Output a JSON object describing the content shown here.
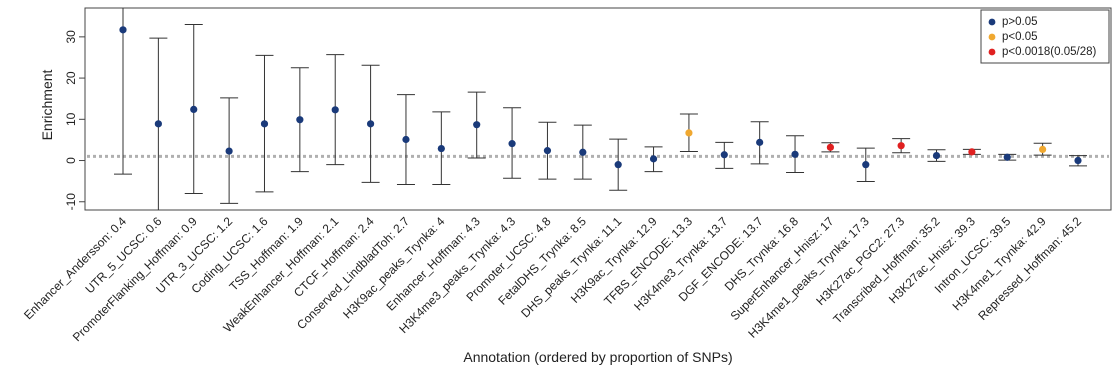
{
  "chart_data": {
    "type": "scatter",
    "xlabel": "Annotation (ordered by proportion of SNPs)",
    "ylabel": "Enrichment",
    "ylim": [
      -12,
      37
    ],
    "yticks": [
      -10,
      0,
      10,
      20,
      30
    ],
    "reference_line": 1,
    "legend": {
      "placement": "top-right",
      "entries": [
        {
          "label": "p>0.05",
          "color": "#1a3a7a"
        },
        {
          "label": "p<0.05",
          "color": "#f0a830"
        },
        {
          "label": "p<0.0018(0.05/28)",
          "color": "#e02020"
        }
      ]
    },
    "points": [
      {
        "label": "Enhancer_Andersson: 0.4",
        "value": 31.7,
        "lower": -3.3,
        "upper": 37,
        "group": 0
      },
      {
        "label": "UTR_5_UCSC: 0.6",
        "value": 8.9,
        "lower": -12,
        "upper": 29.7,
        "group": 0
      },
      {
        "label": "PromoterFlanking_Hoffman: 0.9",
        "value": 12.4,
        "lower": -8.0,
        "upper": 33.0,
        "group": 0
      },
      {
        "label": "UTR_3_UCSC: 1.2",
        "value": 2.3,
        "lower": -10.4,
        "upper": 15.2,
        "group": 0
      },
      {
        "label": "Coding_UCSC: 1.6",
        "value": 8.9,
        "lower": -7.6,
        "upper": 25.5,
        "group": 0
      },
      {
        "label": "TSS_Hoffman: 1.9",
        "value": 9.9,
        "lower": -2.7,
        "upper": 22.5,
        "group": 0
      },
      {
        "label": "WeakEnhancer_Hoffman: 2.1",
        "value": 12.3,
        "lower": -1.0,
        "upper": 25.7,
        "group": 0
      },
      {
        "label": "CTCF_Hoffman: 2.4",
        "value": 8.9,
        "lower": -5.3,
        "upper": 23.1,
        "group": 0
      },
      {
        "label": "Conserved_LindbladToh: 2.7",
        "value": 5.1,
        "lower": -5.8,
        "upper": 16.0,
        "group": 0
      },
      {
        "label": "H3K9ac_peaks_Trynka: 4",
        "value": 2.9,
        "lower": -5.8,
        "upper": 11.8,
        "group": 0
      },
      {
        "label": "Enhancer_Hoffman: 4.3",
        "value": 8.7,
        "lower": 0.6,
        "upper": 16.6,
        "group": 0
      },
      {
        "label": "H3K4me3_peaks_Trynka: 4.3",
        "value": 4.1,
        "lower": -4.3,
        "upper": 12.8,
        "group": 0
      },
      {
        "label": "Promoter_UCSC: 4.8",
        "value": 2.4,
        "lower": -4.5,
        "upper": 9.3,
        "group": 0
      },
      {
        "label": "FetalDHS_Trynka: 8.5",
        "value": 2.0,
        "lower": -4.5,
        "upper": 8.6,
        "group": 0
      },
      {
        "label": "DHS_peaks_Trynka: 11.1",
        "value": -1.0,
        "lower": -7.2,
        "upper": 5.2,
        "group": 0
      },
      {
        "label": "H3K9ac_Trynka: 12.9",
        "value": 0.4,
        "lower": -2.7,
        "upper": 3.3,
        "group": 0
      },
      {
        "label": "TFBS_ENCODE: 13.3",
        "value": 6.7,
        "lower": 2.2,
        "upper": 11.3,
        "group": 1
      },
      {
        "label": "H3K4me3_Trynka: 13.7",
        "value": 1.4,
        "lower": -1.9,
        "upper": 4.4,
        "group": 0
      },
      {
        "label": "DGF_ENCODE: 13.7",
        "value": 4.4,
        "lower": -0.8,
        "upper": 9.4,
        "group": 0
      },
      {
        "label": "DHS_Trynka: 16.8",
        "value": 1.5,
        "lower": -2.9,
        "upper": 6.0,
        "group": 0
      },
      {
        "label": "SuperEnhancer_Hnisz: 17",
        "value": 3.2,
        "lower": 2.1,
        "upper": 4.3,
        "group": 2
      },
      {
        "label": "H3K4me1_peaks_Trynka: 17.3",
        "value": -1.0,
        "lower": -5.1,
        "upper": 3.0,
        "group": 0
      },
      {
        "label": "H3K27ac_PGC2: 27.3",
        "value": 3.6,
        "lower": 1.9,
        "upper": 5.3,
        "group": 2
      },
      {
        "label": "Transcribed_Hoffman: 35.2",
        "value": 1.2,
        "lower": -0.2,
        "upper": 2.6,
        "group": 0
      },
      {
        "label": "H3K27ac_Hnisz: 39.3",
        "value": 2.1,
        "lower": 1.5,
        "upper": 2.7,
        "group": 2
      },
      {
        "label": "Intron_UCSC: 39.5",
        "value": 0.8,
        "lower": 0.1,
        "upper": 1.5,
        "group": 0
      },
      {
        "label": "H3K4me1_Trynka: 42.9",
        "value": 2.7,
        "lower": 1.3,
        "upper": 4.2,
        "group": 1
      },
      {
        "label": "Repressed_Hoffman: 45.2",
        "value": 0.0,
        "lower": -1.3,
        "upper": 1.2,
        "group": 0
      }
    ]
  }
}
